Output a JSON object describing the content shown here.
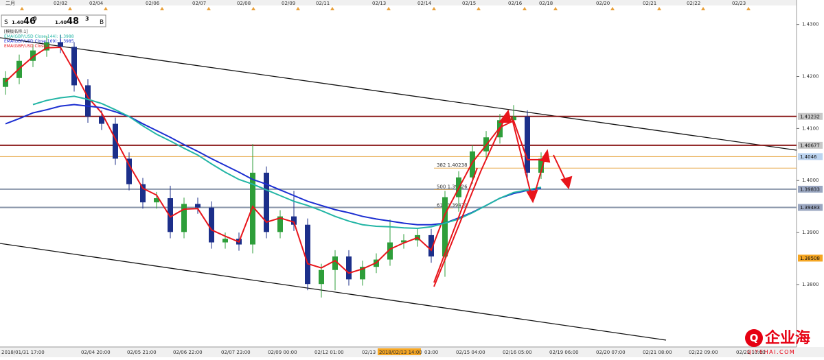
{
  "header": {
    "sell": [
      "S",
      "1.40",
      "46",
      "0"
    ],
    "buy": [
      "1.40",
      "48",
      "3",
      "B"
    ]
  },
  "legend": [
    "[模板名称:1]",
    "EMA(GBP/USD Close,144): 1.3988",
    "EMA(GBP/USD Close,169): 1.3985",
    "EMA(GBP/USD Close,1"
  ],
  "watermark": {
    "name": "企业海",
    "site": "QIYEHAI.COM"
  },
  "chart_data": {
    "type": "candlestick",
    "top_labels": [
      "二月",
      "02/02",
      "02/04",
      "02/06",
      "02/07",
      "02/08",
      "02/09",
      "02/11",
      "02/13",
      "02/14",
      "02/15",
      "02/16",
      "02/18",
      "02/20",
      "02/21",
      "02/22",
      "02/23"
    ],
    "x_labels": [
      "2018/01/31 17:00",
      "02/04 20:00",
      "02/05 21:00",
      "02/06 22:00",
      "02/07 23:00",
      "02/09 00:00",
      "02/12 01:00",
      "02/13",
      "2018/02/13 14:00",
      "03:00",
      "02/15 04:00",
      "02/16 05:00",
      "02/19 06:00",
      "02/20 07:00",
      "02/21 08:00",
      "02/22 09:00",
      "02/23 10:00"
    ],
    "ylim": [
      1.368,
      1.4347
    ],
    "yticks": [
      {
        "value": 1.38,
        "label": "1.3800"
      },
      {
        "value": 1.39,
        "label": "1.3900"
      },
      {
        "value": 1.4,
        "label": "1.4000"
      },
      {
        "value": 1.41,
        "label": "1.4100"
      },
      {
        "value": 1.42,
        "label": "1.4200"
      },
      {
        "value": 1.43,
        "label": "1.4300"
      }
    ],
    "up_color": "#2e9e3a",
    "down_color": "#1c2f8a",
    "open": [
      1.418,
      1.4197,
      1.423,
      1.425,
      1.4266,
      1.4257,
      1.4183,
      1.4123,
      1.4109,
      1.4042,
      1.3993,
      1.3958,
      1.3966,
      1.3901,
      1.3955,
      1.3948,
      1.3881,
      1.3888,
      1.3877,
      1.4015,
      1.3901,
      1.3931,
      1.3915,
      1.3801,
      1.3828,
      1.3854,
      1.381,
      1.3834,
      1.3848,
      1.3881,
      1.3885,
      1.3895,
      1.3854,
      1.3968,
      1.4006,
      1.4056,
      1.4083,
      1.4116,
      1.4123,
      1.4015
    ],
    "high": [
      1.421,
      1.4242,
      1.4262,
      1.4278,
      1.428,
      1.4266,
      1.4195,
      1.4135,
      1.4121,
      1.4054,
      1.4005,
      1.3978,
      1.399,
      1.3967,
      1.3967,
      1.396,
      1.39,
      1.39,
      1.407,
      1.4027,
      1.3943,
      1.398,
      1.3927,
      1.384,
      1.3866,
      1.3866,
      1.3846,
      1.386,
      1.3925,
      1.3897,
      1.3907,
      1.3907,
      1.398,
      1.4018,
      1.4068,
      1.4095,
      1.4128,
      1.4145,
      1.4135,
      1.4054
    ],
    "low": [
      1.4165,
      1.4185,
      1.4218,
      1.4238,
      1.4245,
      1.4171,
      1.4111,
      1.4097,
      1.403,
      1.3981,
      1.3946,
      1.3946,
      1.3889,
      1.3889,
      1.3936,
      1.3869,
      1.3869,
      1.3865,
      1.386,
      1.3889,
      1.3889,
      1.3903,
      1.3789,
      1.3775,
      1.3789,
      1.3798,
      1.3798,
      1.3822,
      1.3836,
      1.3869,
      1.3873,
      1.3842,
      1.3815,
      1.394,
      1.3994,
      1.4044,
      1.4071,
      1.4104,
      1.4003,
      1.4003
    ],
    "close": [
      1.4197,
      1.423,
      1.425,
      1.4266,
      1.4257,
      1.4183,
      1.4123,
      1.4109,
      1.4042,
      1.3993,
      1.3958,
      1.3966,
      1.3901,
      1.3955,
      1.3948,
      1.3881,
      1.3888,
      1.3877,
      1.4015,
      1.3901,
      1.3931,
      1.3915,
      1.3801,
      1.3828,
      1.3854,
      1.381,
      1.3834,
      1.3848,
      1.3881,
      1.3885,
      1.3895,
      1.3854,
      1.3968,
      1.4006,
      1.4056,
      1.4083,
      1.4116,
      1.4123,
      1.4015,
      1.4042
    ],
    "series": [
      {
        "color": "#e8141a",
        "values": [
          1.419,
          1.4215,
          1.4238,
          1.4255,
          1.4256,
          1.421,
          1.416,
          1.413,
          1.408,
          1.403,
          1.3985,
          1.3972,
          1.393,
          1.3945,
          1.3946,
          1.3905,
          1.3893,
          1.3882,
          1.395,
          1.392,
          1.3928,
          1.392,
          1.384,
          1.3832,
          1.3846,
          1.3822,
          1.383,
          1.3842,
          1.3868,
          1.388,
          1.389,
          1.3866,
          1.3935,
          1.3985,
          1.4035,
          1.4068,
          1.4102,
          1.4115,
          1.404,
          1.404
        ]
      },
      {
        "color": "#1b2ed1",
        "values": [
          1.4109,
          1.4119,
          1.413,
          1.4136,
          1.4143,
          1.4146,
          1.4143,
          1.414,
          1.4132,
          1.4123,
          1.4109,
          1.4096,
          1.4083,
          1.4069,
          1.4056,
          1.4042,
          1.4029,
          1.4016,
          1.4002,
          1.3993,
          1.3982,
          1.3971,
          1.396,
          1.3952,
          1.3944,
          1.3938,
          1.3931,
          1.3926,
          1.3922,
          1.3918,
          1.3915,
          1.3915,
          1.3918,
          1.3928,
          1.3939,
          1.3952,
          1.3966,
          1.3975,
          1.3981,
          1.3985
        ]
      },
      {
        "color": "#22b5a5",
        "values": [
          null,
          null,
          1.4146,
          1.4154,
          1.4159,
          1.4162,
          1.4156,
          1.4148,
          1.4136,
          1.4123,
          1.4105,
          1.4089,
          1.4076,
          1.4062,
          1.4049,
          1.4032,
          1.4016,
          1.4002,
          1.3993,
          1.3982,
          1.3971,
          1.396,
          1.3952,
          1.3942,
          1.3931,
          1.3922,
          1.3915,
          1.3912,
          1.3911,
          1.3909,
          1.3908,
          1.3911,
          1.3918,
          1.3926,
          1.3938,
          1.3952,
          1.3966,
          1.3977,
          1.3982,
          1.3987
        ]
      }
    ],
    "levels": [
      {
        "value": 1.41232,
        "color": "#8b1a1a",
        "box": "#c8c8c8"
      },
      {
        "value": 1.40677,
        "color": "#8b1a1a",
        "box": "#c8c8c8"
      },
      {
        "value": 1.4046,
        "color": "#e6a23c",
        "box": "#bcd4f0"
      },
      {
        "value": 1.39833,
        "color": "#8a96aa",
        "box": "#9aa6c0"
      },
      {
        "value": 1.39483,
        "color": "#8a96aa",
        "box": "#9aa6c0"
      },
      {
        "value": 1.38508,
        "color": "none",
        "box": "#f5a623"
      }
    ],
    "fib": [
      {
        "value": 1.40238,
        "label": "382 1.40238"
      },
      {
        "value": 1.39826,
        "label": "500 1.39826"
      },
      {
        "value": 1.3947,
        "label": "618 1.39470"
      }
    ]
  }
}
